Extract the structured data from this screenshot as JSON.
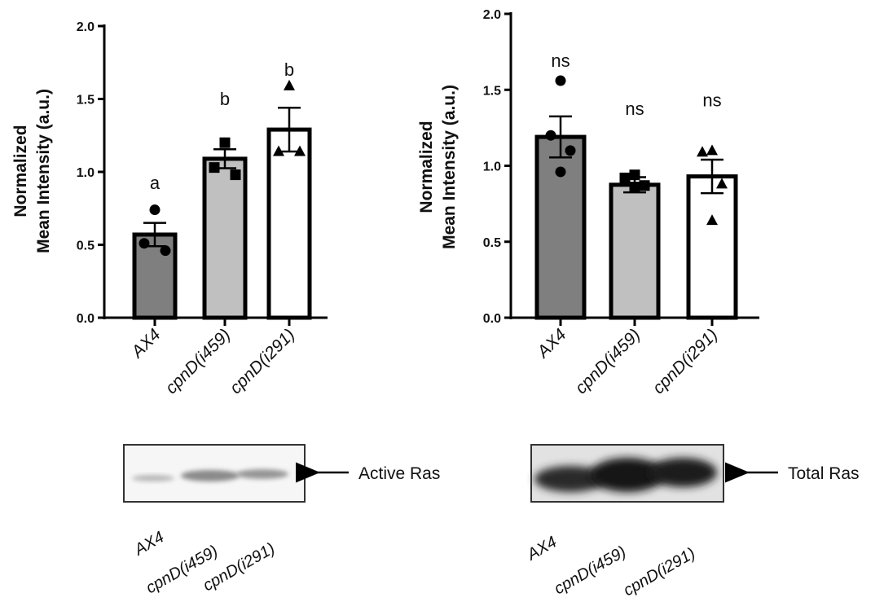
{
  "chart_data": [
    {
      "type": "bar",
      "ylabel": [
        "Normalized",
        "Mean Intensity (a.u.)"
      ],
      "ylim": [
        0,
        2.0
      ],
      "yticks": [
        "0.0",
        "0.5",
        "1.0",
        "1.5",
        "2.0"
      ],
      "categories": [
        "AX4",
        "cpnD(i459)",
        "cpnD(i291)"
      ],
      "values": [
        0.57,
        1.09,
        1.29
      ],
      "sem": [
        0.08,
        0.065,
        0.15
      ],
      "significance": [
        "a",
        "b",
        "b"
      ],
      "bar_colors": [
        "#7f7f7f",
        "#c0c0c0",
        "#ffffff"
      ],
      "markers": [
        "circle",
        "square",
        "triangle"
      ],
      "points": [
        [
          0.74,
          0.51,
          0.46
        ],
        [
          1.2,
          1.03,
          0.98
        ],
        [
          1.59,
          1.14,
          1.14
        ]
      ]
    },
    {
      "type": "bar",
      "ylabel": [
        "Normalized",
        "Mean Intensity (a.u.)"
      ],
      "ylim": [
        0,
        2.0
      ],
      "yticks": [
        "0.0",
        "0.5",
        "1.0",
        "1.5",
        "2.0"
      ],
      "categories": [
        "AX4",
        "cpnD(i459)",
        "cpnD(i291)"
      ],
      "values": [
        1.19,
        0.875,
        0.93
      ],
      "sem": [
        0.135,
        0.05,
        0.11
      ],
      "significance": [
        "ns",
        "ns",
        "ns"
      ],
      "bar_colors": [
        "#7f7f7f",
        "#c0c0c0",
        "#ffffff"
      ],
      "markers": [
        "circle",
        "square",
        "triangle"
      ],
      "points": [
        [
          1.56,
          1.2,
          1.1,
          0.96
        ],
        [
          0.94,
          0.92,
          0.87,
          0.86
        ],
        [
          1.1,
          1.09,
          0.88,
          0.64
        ]
      ]
    }
  ],
  "blots": [
    {
      "label": "Active Ras",
      "lanes": [
        "AX4",
        "cpnD(i459)",
        "cpnD(i291)"
      ]
    },
    {
      "label": "Total Ras",
      "lanes": [
        "AX4",
        "cpnD(i459)",
        "cpnD(i291)"
      ]
    }
  ]
}
